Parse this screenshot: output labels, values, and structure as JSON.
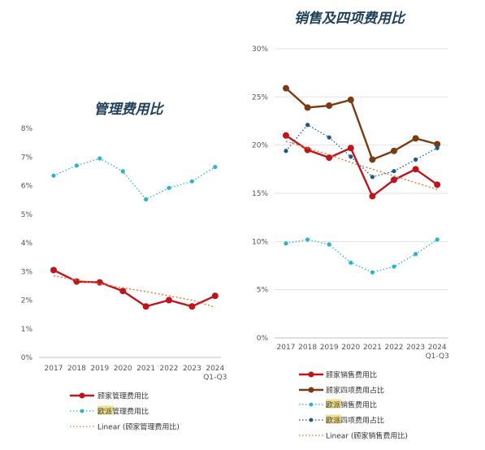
{
  "chart_data": [
    {
      "type": "line",
      "title": "管理费用比",
      "categories": [
        "2017",
        "2018",
        "2019",
        "2020",
        "2021",
        "2022",
        "2023",
        "2024"
      ],
      "category_sublabel": "Q1-Q3",
      "ylim": [
        0,
        8
      ],
      "yticks": [
        "0%",
        "1%",
        "2%",
        "3%",
        "4%",
        "5%",
        "6%",
        "7%",
        "8%"
      ],
      "grid": false,
      "legend_placement": "bottom",
      "series": [
        {
          "name": "顾家管理费用比",
          "values": [
            3.05,
            2.65,
            2.62,
            2.32,
            1.78,
            2.0,
            1.78,
            2.15
          ],
          "color": "#c0141c",
          "style": "solid-dot"
        },
        {
          "name": "欧派管理费用比",
          "name_highlight": "欧派",
          "name_rest": "管理费用比",
          "values": [
            6.35,
            6.7,
            6.95,
            6.5,
            5.52,
            5.92,
            6.15,
            6.65
          ],
          "color": "#2bb3cf",
          "style": "dotted-dot"
        },
        {
          "name": "Linear (顾家管理费用比)",
          "values": [
            2.85,
            2.7,
            2.57,
            2.43,
            2.3,
            2.15,
            2.0,
            1.75
          ],
          "color": "#e07a2e",
          "style": "dotted"
        }
      ]
    },
    {
      "type": "line",
      "title": "销售及四项费用比",
      "categories": [
        "2017",
        "2018",
        "2019",
        "2020",
        "2021",
        "2022",
        "2023",
        "2024"
      ],
      "category_sublabel": "Q1-Q3",
      "ylim": [
        0,
        30
      ],
      "yticks": [
        "0%",
        "5%",
        "10%",
        "15%",
        "20%",
        "25%",
        "30%"
      ],
      "grid": true,
      "legend_placement": "bottom",
      "series": [
        {
          "name": "顾家销售费用比",
          "values": [
            21.0,
            19.5,
            18.7,
            19.7,
            14.7,
            16.4,
            17.5,
            15.9
          ],
          "color": "#c0141c",
          "style": "solid-dot"
        },
        {
          "name": "顾家四项费用占比",
          "values": [
            25.9,
            23.9,
            24.1,
            24.7,
            18.5,
            19.4,
            20.7,
            20.1
          ],
          "color": "#7b3a12",
          "style": "solid-dot"
        },
        {
          "name": "欧派销售费用比",
          "name_highlight": "欧派",
          "name_rest": "销售费用比",
          "values": [
            9.8,
            10.2,
            9.7,
            7.8,
            6.8,
            7.4,
            8.7,
            10.2
          ],
          "color": "#2bb3cf",
          "style": "dotted-dot"
        },
        {
          "name": "欧派四项费用占比",
          "name_highlight": "欧派",
          "name_rest": "四项费用占比",
          "values": [
            19.4,
            22.1,
            20.8,
            18.8,
            16.7,
            17.3,
            18.5,
            19.7
          ],
          "color": "#1a5a86",
          "style": "dotted-dot"
        },
        {
          "name": "Linear (顾家销售费用比)",
          "values": [
            20.4,
            19.7,
            19.0,
            18.2,
            17.5,
            16.8,
            16.1,
            15.4
          ],
          "color": "#e07a2e",
          "style": "dotted"
        }
      ]
    }
  ]
}
